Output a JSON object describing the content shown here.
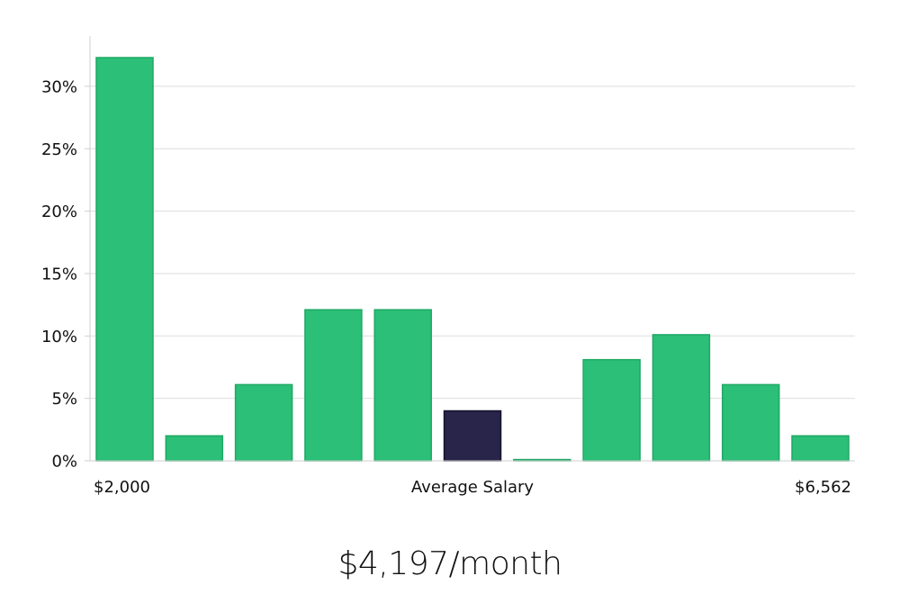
{
  "chart_data": {
    "type": "bar",
    "title": "",
    "xlabel": "",
    "ylabel": "",
    "x_tick_labels": {
      "left": "$2,000",
      "center": "Average Salary",
      "right": "$6,562"
    },
    "y_ticks": [
      0,
      5,
      10,
      15,
      20,
      25,
      30
    ],
    "y_tick_labels": [
      "0%",
      "5%",
      "10%",
      "15%",
      "20%",
      "25%",
      "30%"
    ],
    "ylim": [
      0,
      34
    ],
    "grid": true,
    "values": [
      32.3,
      2,
      6.1,
      12.1,
      12.1,
      4,
      0.1,
      8.1,
      10.1,
      6.1,
      2
    ],
    "highlight_index": 5,
    "colors": {
      "bar": "#2bbf77",
      "bar_edge": "#20a865",
      "highlight": "#28244a",
      "highlight_edge": "#14122b"
    }
  },
  "caption": "$4,197/month"
}
